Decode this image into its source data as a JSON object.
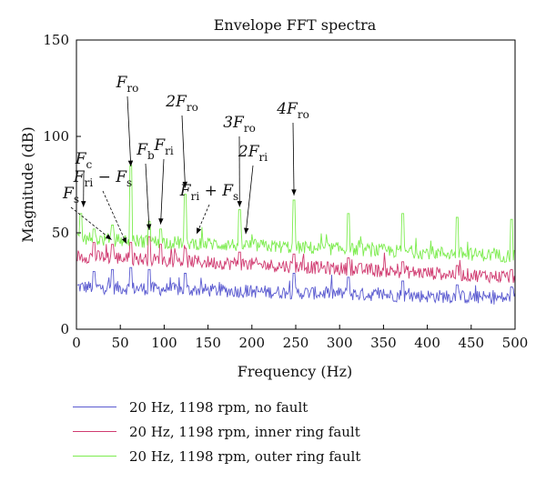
{
  "chart_data": {
    "type": "line",
    "title": "Envelope FFT spectra",
    "xlabel": "Frequency (Hz)",
    "ylabel": "Magnitude (dB)",
    "xlim": [
      0,
      500
    ],
    "ylim": [
      0,
      150
    ],
    "x_ticks": [
      "0",
      "50",
      "100",
      "150",
      "200",
      "250",
      "300",
      "350",
      "400",
      "450",
      "500"
    ],
    "y_ticks": [
      "0",
      "50",
      "100",
      "150"
    ],
    "grid": false,
    "legend_position": "below",
    "series": [
      {
        "name": "20 Hz, 1198 rpm, no fault",
        "color": "#5a5ad0",
        "baseline_start": 22,
        "baseline_end": 16,
        "peaks": [
          [
            20,
            30
          ],
          [
            41,
            31
          ],
          [
            62,
            32
          ],
          [
            83,
            31
          ],
          [
            124,
            29
          ],
          [
            248,
            29
          ],
          [
            310,
            27
          ],
          [
            372,
            25
          ],
          [
            434,
            23
          ],
          [
            496,
            22
          ]
        ]
      },
      {
        "name": "20 Hz, 1198 rpm, inner ring fault",
        "color": "#d03a70",
        "baseline_start": 38,
        "baseline_end": 27,
        "peaks": [
          [
            20,
            45
          ],
          [
            41,
            44
          ],
          [
            62,
            45
          ],
          [
            83,
            48
          ],
          [
            96,
            44
          ],
          [
            124,
            42
          ],
          [
            186,
            40
          ],
          [
            248,
            39
          ],
          [
            310,
            37
          ],
          [
            372,
            35
          ],
          [
            434,
            33
          ],
          [
            496,
            31
          ]
        ]
      },
      {
        "name": "20 Hz, 1198 rpm, outer ring fault",
        "color": "#7cec4e",
        "baseline_start": 47,
        "baseline_end": 38,
        "peaks": [
          [
            5,
            60
          ],
          [
            20,
            52
          ],
          [
            41,
            54
          ],
          [
            62,
            85
          ],
          [
            83,
            56
          ],
          [
            96,
            52
          ],
          [
            124,
            70
          ],
          [
            186,
            62
          ],
          [
            248,
            67
          ],
          [
            310,
            60
          ],
          [
            372,
            60
          ],
          [
            434,
            58
          ],
          [
            496,
            57
          ]
        ]
      }
    ],
    "annotations": [
      {
        "label": "F_c",
        "base": "F",
        "sub": "c",
        "x": 8,
        "y": 62
      },
      {
        "label": "F_ro",
        "base": "F",
        "sub": "ro",
        "x": 62,
        "y": 83
      },
      {
        "label": "2F_ro",
        "base": "2F",
        "sub": "ro",
        "x": 124,
        "y": 72
      },
      {
        "label": "3F_ro",
        "base": "3F",
        "sub": "ro",
        "x": 186,
        "y": 62
      },
      {
        "label": "4F_ro",
        "base": "4F",
        "sub": "ro",
        "x": 248,
        "y": 68
      },
      {
        "label": "F_b",
        "base": "F",
        "sub": "b",
        "x": 83,
        "y": 50
      },
      {
        "label": "F_ri",
        "base": "F",
        "sub": "ri",
        "x": 96,
        "y": 53
      },
      {
        "label": "2F_ri",
        "base": "2F",
        "sub": "ri",
        "x": 193,
        "y": 48
      },
      {
        "label": "F_s",
        "base": "F",
        "sub": "s",
        "x": 40,
        "y": 45
      },
      {
        "label": "F_ri − F_s",
        "base": "F",
        "sub": "ri",
        "tail": " − F",
        "tail_sub": "s",
        "x": 57,
        "y": 43
      },
      {
        "label": "F_ri + F_s",
        "base": "F",
        "sub": "ri",
        "tail": " + F",
        "tail_sub": "s",
        "x": 137,
        "y": 48
      }
    ]
  }
}
